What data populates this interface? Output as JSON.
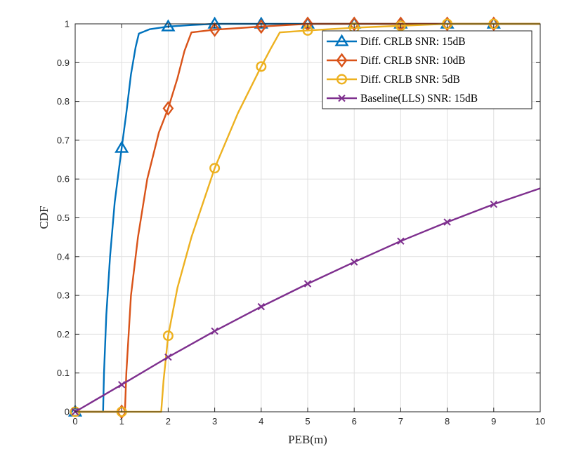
{
  "chart_data": {
    "type": "line",
    "xlabel": "PEB(m)",
    "ylabel": "CDF",
    "xlim": [
      0,
      10
    ],
    "ylim": [
      0,
      1
    ],
    "xticks": [
      "0",
      "1",
      "2",
      "3",
      "4",
      "5",
      "6",
      "7",
      "8",
      "9",
      "10"
    ],
    "yticks": [
      "0",
      "0.1",
      "0.2",
      "0.3",
      "0.4",
      "0.5",
      "0.6",
      "0.7",
      "0.8",
      "0.9",
      "1"
    ],
    "grid": true,
    "legend_position": "top-right",
    "series": [
      {
        "name": "Diff. CRLB SNR: 15dB",
        "color": "#0072BD",
        "marker": "triangle",
        "curve": [
          [
            0.6,
            0
          ],
          [
            0.62,
            0.1
          ],
          [
            0.67,
            0.25
          ],
          [
            0.75,
            0.4
          ],
          [
            0.85,
            0.54
          ],
          [
            1.0,
            0.68
          ],
          [
            1.1,
            0.77
          ],
          [
            1.2,
            0.87
          ],
          [
            1.3,
            0.94
          ],
          [
            1.37,
            0.975
          ],
          [
            1.6,
            0.986
          ],
          [
            2.0,
            0.993
          ],
          [
            2.5,
            0.997
          ],
          [
            3,
            1
          ],
          [
            10,
            1
          ]
        ],
        "markers": [
          [
            0,
            0
          ],
          [
            1,
            0.68
          ],
          [
            2,
            0.993
          ],
          [
            3,
            1
          ],
          [
            4,
            1
          ],
          [
            5,
            1
          ],
          [
            6,
            1
          ],
          [
            7,
            1
          ],
          [
            8,
            1
          ],
          [
            9,
            1
          ]
        ]
      },
      {
        "name": "Diff. CRLB SNR: 10dB",
        "color": "#D95319",
        "marker": "diamond",
        "curve": [
          [
            1.07,
            0
          ],
          [
            1.1,
            0.1
          ],
          [
            1.2,
            0.3
          ],
          [
            1.35,
            0.45
          ],
          [
            1.55,
            0.6
          ],
          [
            1.8,
            0.72
          ],
          [
            2.0,
            0.782
          ],
          [
            2.2,
            0.86
          ],
          [
            2.35,
            0.93
          ],
          [
            2.5,
            0.978
          ],
          [
            3.0,
            0.985
          ],
          [
            4.0,
            0.993
          ],
          [
            5,
            1
          ],
          [
            10,
            1
          ]
        ],
        "markers": [
          [
            1,
            0
          ],
          [
            2,
            0.782
          ],
          [
            3,
            0.985
          ],
          [
            4,
            0.993
          ],
          [
            5,
            1
          ],
          [
            6,
            1
          ],
          [
            7,
            1
          ],
          [
            8,
            1
          ],
          [
            9,
            1
          ]
        ]
      },
      {
        "name": "Diff. CRLB SNR: 5dB",
        "color": "#EDB120",
        "marker": "circle",
        "curve": [
          [
            1.85,
            0
          ],
          [
            1.9,
            0.08
          ],
          [
            2.0,
            0.196
          ],
          [
            2.2,
            0.32
          ],
          [
            2.5,
            0.45
          ],
          [
            3.0,
            0.628
          ],
          [
            3.5,
            0.77
          ],
          [
            4.0,
            0.89
          ],
          [
            4.2,
            0.935
          ],
          [
            4.4,
            0.978
          ],
          [
            5.0,
            0.983
          ],
          [
            6.0,
            0.99
          ],
          [
            7.0,
            0.995
          ],
          [
            8,
            1
          ],
          [
            10,
            1
          ]
        ],
        "markers": [
          [
            0,
            0
          ],
          [
            1,
            0
          ],
          [
            2,
            0.196
          ],
          [
            3,
            0.628
          ],
          [
            4,
            0.89
          ],
          [
            5,
            0.983
          ],
          [
            6,
            0.99
          ],
          [
            7,
            0.995
          ],
          [
            8,
            1
          ],
          [
            9,
            1
          ]
        ]
      },
      {
        "name": "Baseline(LLS) SNR: 15dB",
        "color": "#7E2F8E",
        "marker": "x",
        "curve": [
          [
            0,
            0
          ],
          [
            1,
            0.07
          ],
          [
            2,
            0.141
          ],
          [
            3,
            0.208
          ],
          [
            4,
            0.271
          ],
          [
            5,
            0.33
          ],
          [
            6,
            0.386
          ],
          [
            7,
            0.44
          ],
          [
            8,
            0.489
          ],
          [
            9,
            0.535
          ],
          [
            10,
            0.576
          ]
        ],
        "markers": [
          [
            0,
            0
          ],
          [
            1,
            0.07
          ],
          [
            2,
            0.141
          ],
          [
            3,
            0.208
          ],
          [
            4,
            0.271
          ],
          [
            5,
            0.33
          ],
          [
            6,
            0.386
          ],
          [
            7,
            0.44
          ],
          [
            8,
            0.489
          ],
          [
            9,
            0.535
          ]
        ]
      }
    ]
  }
}
